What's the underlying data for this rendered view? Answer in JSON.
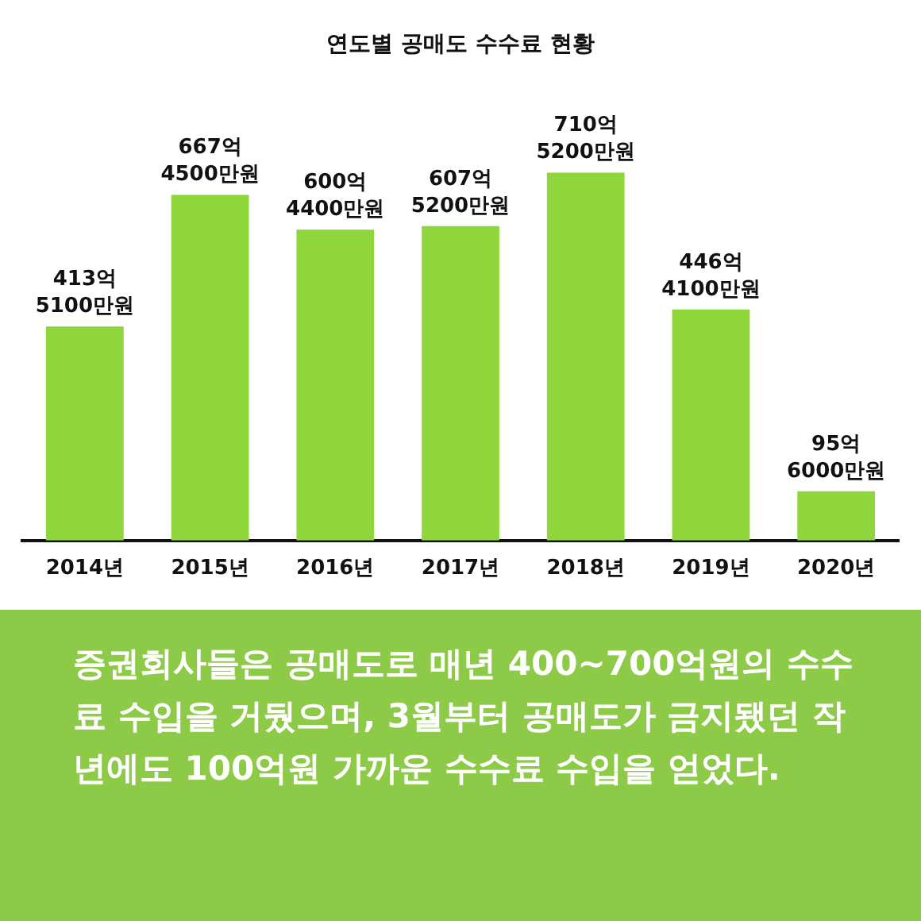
{
  "chart_data": {
    "type": "bar",
    "title": "연도별 공매도 수수료 현황",
    "categories": [
      "2014년",
      "2015년",
      "2016년",
      "2017년",
      "2018년",
      "2019년",
      "2020년"
    ],
    "values": [
      413,
      667,
      600,
      607,
      710,
      446,
      95
    ],
    "value_labels": [
      "413억\n5100만원",
      "667억\n4500만원",
      "600억\n4400만원",
      "607억\n5200만원",
      "710억\n5200만원",
      "446억\n4100만원",
      "95억\n6000만원"
    ],
    "color": "#8ed63b",
    "grid": false,
    "legend": false,
    "annotations": [
      "증권회사들은 공매도로 매년 400~700억원의 수수료 수입을 거뒀으며, 3월부터 공매도가 금지됐던 작년에도 100억원 가까운 수수료 수입을 얻었다."
    ]
  }
}
